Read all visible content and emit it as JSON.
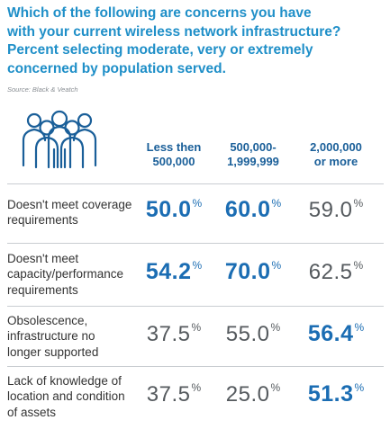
{
  "title_lines": [
    "Which of the following are concerns you have",
    "with your current wireless network infrastructure?",
    "Percent selecting moderate, very or extremely",
    "concerned by population served."
  ],
  "source": "Source: Black & Veatch",
  "icon": "people-group-icon",
  "colors": {
    "title": "#1f8fc8",
    "header": "#1a5f99",
    "highlight_value": "#1b6db3",
    "normal_value": "#555a5e",
    "divider": "#c9cdd1"
  },
  "chart_data": {
    "type": "table",
    "columns": [
      {
        "label_lines": [
          "Less then",
          "500,000"
        ]
      },
      {
        "label_lines": [
          "500,000-",
          "1,999,999"
        ]
      },
      {
        "label_lines": [
          "2,000,000",
          "or more"
        ]
      }
    ],
    "unit": "%",
    "rows": [
      {
        "label_lines": [
          "Doesn't meet coverage",
          "requirements"
        ],
        "values": [
          {
            "value": "50.0",
            "highlight": true
          },
          {
            "value": "60.0",
            "highlight": true
          },
          {
            "value": "59.0",
            "highlight": false
          }
        ]
      },
      {
        "label_lines": [
          "Doesn't meet",
          "capacity/performance",
          "requirements"
        ],
        "values": [
          {
            "value": "54.2",
            "highlight": true
          },
          {
            "value": "70.0",
            "highlight": true
          },
          {
            "value": "62.5",
            "highlight": false
          }
        ]
      },
      {
        "label_lines": [
          "Obsolescence,",
          "infrastructure no",
          "longer supported"
        ],
        "values": [
          {
            "value": "37.5",
            "highlight": false
          },
          {
            "value": "55.0",
            "highlight": false
          },
          {
            "value": "56.4",
            "highlight": true
          }
        ]
      },
      {
        "label_lines": [
          "Lack of knowledge of",
          "location and condition",
          "of assets"
        ],
        "values": [
          {
            "value": "37.5",
            "highlight": false
          },
          {
            "value": "25.0",
            "highlight": false
          },
          {
            "value": "51.3",
            "highlight": true
          }
        ]
      }
    ]
  }
}
